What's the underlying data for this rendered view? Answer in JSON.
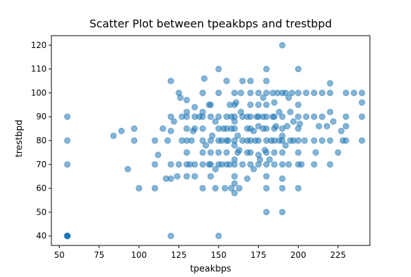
{
  "chart_data": {
    "type": "scatter",
    "title": "Scatter Plot between tpeakbps and trestbpd",
    "xlabel": "tpeakbps",
    "ylabel": "trestbpd",
    "xlim": [
      45,
      245
    ],
    "ylim": [
      36,
      124
    ],
    "xticks": [
      50,
      75,
      100,
      125,
      150,
      175,
      200,
      225
    ],
    "yticks": [
      40,
      50,
      60,
      70,
      80,
      90,
      100,
      110,
      120
    ],
    "grid": false,
    "legend": "none",
    "marker_color": "#1f77b4",
    "marker_alpha": 0.55,
    "points": [
      [
        55,
        40
      ],
      [
        55,
        40
      ],
      [
        55,
        40
      ],
      [
        55,
        40
      ],
      [
        55,
        40
      ],
      [
        55,
        40
      ],
      [
        55,
        70
      ],
      [
        55,
        80
      ],
      [
        55,
        90
      ],
      [
        84,
        82
      ],
      [
        89,
        84
      ],
      [
        93,
        68
      ],
      [
        97,
        80
      ],
      [
        97,
        85
      ],
      [
        100,
        60
      ],
      [
        110,
        60
      ],
      [
        110,
        70
      ],
      [
        110,
        80
      ],
      [
        112,
        74
      ],
      [
        115,
        85
      ],
      [
        117,
        64
      ],
      [
        118,
        80
      ],
      [
        120,
        40
      ],
      [
        120,
        64
      ],
      [
        120,
        70
      ],
      [
        120,
        84
      ],
      [
        120,
        90
      ],
      [
        120,
        105
      ],
      [
        122,
        88
      ],
      [
        124,
        65
      ],
      [
        125,
        70
      ],
      [
        125,
        100
      ],
      [
        126,
        98
      ],
      [
        127,
        80
      ],
      [
        127,
        90
      ],
      [
        130,
        65
      ],
      [
        130,
        70
      ],
      [
        130,
        75
      ],
      [
        130,
        80
      ],
      [
        130,
        85
      ],
      [
        130,
        90
      ],
      [
        130,
        92
      ],
      [
        130,
        97
      ],
      [
        132,
        70
      ],
      [
        133,
        80
      ],
      [
        134,
        84
      ],
      [
        135,
        65
      ],
      [
        135,
        70
      ],
      [
        135,
        85
      ],
      [
        135,
        90
      ],
      [
        135,
        94
      ],
      [
        138,
        90
      ],
      [
        140,
        60
      ],
      [
        140,
        70
      ],
      [
        140,
        75
      ],
      [
        140,
        80
      ],
      [
        140,
        85
      ],
      [
        140,
        90
      ],
      [
        140,
        92
      ],
      [
        140,
        100
      ],
      [
        141,
        106
      ],
      [
        142,
        78
      ],
      [
        144,
        70
      ],
      [
        144,
        95
      ],
      [
        145,
        65
      ],
      [
        145,
        70
      ],
      [
        145,
        75
      ],
      [
        145,
        80
      ],
      [
        145,
        90
      ],
      [
        145,
        95
      ],
      [
        146,
        82
      ],
      [
        148,
        60
      ],
      [
        148,
        68
      ],
      [
        148,
        88
      ],
      [
        150,
        40
      ],
      [
        150,
        70
      ],
      [
        150,
        75
      ],
      [
        150,
        80
      ],
      [
        150,
        85
      ],
      [
        150,
        90
      ],
      [
        150,
        100
      ],
      [
        150,
        110
      ],
      [
        152,
        70
      ],
      [
        152,
        80
      ],
      [
        153,
        85
      ],
      [
        154,
        60
      ],
      [
        155,
        70
      ],
      [
        155,
        75
      ],
      [
        155,
        80
      ],
      [
        155,
        85
      ],
      [
        155,
        90
      ],
      [
        155,
        105
      ],
      [
        156,
        80
      ],
      [
        157,
        70
      ],
      [
        157,
        95
      ],
      [
        158,
        60
      ],
      [
        158,
        85
      ],
      [
        158,
        90
      ],
      [
        160,
        58
      ],
      [
        160,
        62
      ],
      [
        160,
        65
      ],
      [
        160,
        70
      ],
      [
        160,
        72
      ],
      [
        160,
        78
      ],
      [
        160,
        80
      ],
      [
        160,
        85
      ],
      [
        160,
        88
      ],
      [
        160,
        90
      ],
      [
        160,
        95
      ],
      [
        160,
        100
      ],
      [
        161,
        96
      ],
      [
        162,
        75
      ],
      [
        162,
        82
      ],
      [
        163,
        60
      ],
      [
        163,
        76
      ],
      [
        164,
        92
      ],
      [
        164,
        100
      ],
      [
        165,
        70
      ],
      [
        165,
        80
      ],
      [
        165,
        90
      ],
      [
        165,
        105
      ],
      [
        168,
        64
      ],
      [
        168,
        75
      ],
      [
        168,
        80
      ],
      [
        168,
        85
      ],
      [
        168,
        90
      ],
      [
        170,
        70
      ],
      [
        170,
        75
      ],
      [
        170,
        80
      ],
      [
        170,
        85
      ],
      [
        170,
        90
      ],
      [
        170,
        95
      ],
      [
        170,
        100
      ],
      [
        170,
        105
      ],
      [
        172,
        68
      ],
      [
        172,
        84
      ],
      [
        173,
        80
      ],
      [
        174,
        90
      ],
      [
        175,
        70
      ],
      [
        175,
        74
      ],
      [
        175,
        80
      ],
      [
        175,
        86
      ],
      [
        175,
        90
      ],
      [
        175,
        95
      ],
      [
        175,
        100
      ],
      [
        176,
        72
      ],
      [
        178,
        85
      ],
      [
        178,
        90
      ],
      [
        178,
        98
      ],
      [
        179,
        76
      ],
      [
        180,
        50
      ],
      [
        180,
        60
      ],
      [
        180,
        65
      ],
      [
        180,
        70
      ],
      [
        180,
        75
      ],
      [
        180,
        80
      ],
      [
        180,
        85
      ],
      [
        180,
        90
      ],
      [
        180,
        95
      ],
      [
        180,
        100
      ],
      [
        180,
        105
      ],
      [
        180,
        110
      ],
      [
        182,
        72
      ],
      [
        183,
        80
      ],
      [
        184,
        90
      ],
      [
        184,
        100
      ],
      [
        185,
        70
      ],
      [
        185,
        75
      ],
      [
        185,
        80
      ],
      [
        185,
        85
      ],
      [
        185,
        90
      ],
      [
        185,
        96
      ],
      [
        186,
        86
      ],
      [
        187,
        100
      ],
      [
        188,
        80
      ],
      [
        188,
        92
      ],
      [
        190,
        50
      ],
      [
        190,
        60
      ],
      [
        190,
        64
      ],
      [
        190,
        70
      ],
      [
        190,
        75
      ],
      [
        190,
        80
      ],
      [
        190,
        82
      ],
      [
        190,
        85
      ],
      [
        190,
        90
      ],
      [
        190,
        100
      ],
      [
        190,
        120
      ],
      [
        192,
        78
      ],
      [
        192,
        100
      ],
      [
        193,
        86
      ],
      [
        194,
        70
      ],
      [
        194,
        98
      ],
      [
        195,
        80
      ],
      [
        195,
        92
      ],
      [
        196,
        100
      ],
      [
        197,
        80
      ],
      [
        197,
        88
      ],
      [
        200,
        60
      ],
      [
        200,
        70
      ],
      [
        200,
        75
      ],
      [
        200,
        80
      ],
      [
        200,
        85
      ],
      [
        200,
        90
      ],
      [
        200,
        95
      ],
      [
        200,
        100
      ],
      [
        200,
        110
      ],
      [
        201,
        87
      ],
      [
        202,
        70
      ],
      [
        204,
        80
      ],
      [
        205,
        90
      ],
      [
        205,
        100
      ],
      [
        210,
        70
      ],
      [
        210,
        80
      ],
      [
        210,
        90
      ],
      [
        210,
        100
      ],
      [
        211,
        75
      ],
      [
        213,
        86
      ],
      [
        215,
        80
      ],
      [
        215,
        90
      ],
      [
        215,
        100
      ],
      [
        218,
        86
      ],
      [
        220,
        70
      ],
      [
        220,
        80
      ],
      [
        220,
        92
      ],
      [
        220,
        100
      ],
      [
        220,
        104
      ],
      [
        222,
        88
      ],
      [
        225,
        75
      ],
      [
        227,
        84
      ],
      [
        228,
        80
      ],
      [
        230,
        80
      ],
      [
        230,
        86
      ],
      [
        230,
        90
      ],
      [
        230,
        100
      ],
      [
        235,
        100
      ],
      [
        240,
        80
      ],
      [
        240,
        90
      ],
      [
        240,
        96
      ],
      [
        240,
        100
      ]
    ]
  }
}
